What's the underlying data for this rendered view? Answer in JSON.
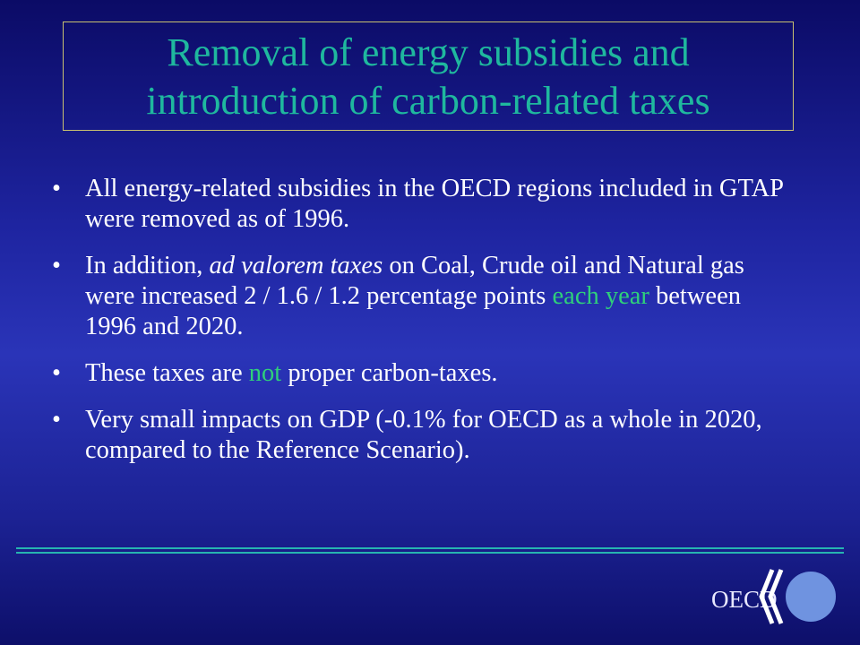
{
  "title": {
    "lines": [
      "Removal of energy subsidies and",
      "introduction of carbon-related taxes"
    ]
  },
  "bullets": [
    {
      "segments": [
        "All energy-related subsidies in the OECD regions included in GTAP were removed as of 1996."
      ]
    },
    {
      "segments": [
        "In addition, ",
        "ad valorem taxes",
        " on Coal, Crude oil and Natural gas were increased 2 / 1.6 / 1.2 percentage points ",
        "each year",
        " between 1996 and 2020."
      ]
    },
    {
      "segments": [
        "These taxes are ",
        "not",
        " proper carbon-taxes."
      ]
    },
    {
      "segments": [
        "Very small impacts on GDP (-0.1% for OECD as a whole in 2020, compared to the Reference Scenario)."
      ]
    }
  ],
  "logo": {
    "text": "OECD"
  }
}
